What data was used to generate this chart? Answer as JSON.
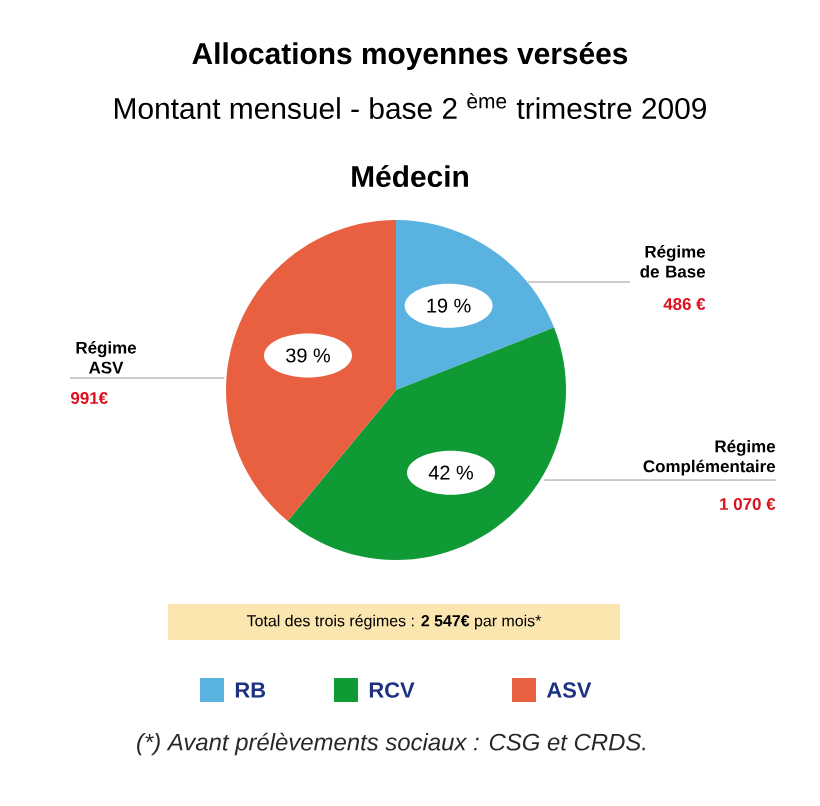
{
  "chart_data": {
    "type": "pie",
    "title": "Allocations moyennes versées",
    "subtitle": "Montant mensuel - base 2 $^{ème}$ trimestre 2009",
    "categories": [
      "RB",
      "RCV",
      "ASV"
    ],
    "values": [
      19,
      42,
      39
    ],
    "value_labels": [
      "19 %",
      "42 %",
      "39 %"
    ],
    "colors": [
      "#5ab2e0",
      "#0f9a35",
      "#e86040"
    ],
    "legend": "bottom",
    "annotations": [
      "Médecin",
      "Régime de Base",
      "486 €",
      "Régime Complémentaire",
      "1 070 €",
      "Régime ASV",
      "991€",
      "Total des trois régimes : **2 547€** par mois*",
      "(*) Avant prélèvements sociaux : CSG et CRDS."
    ]
  }
}
